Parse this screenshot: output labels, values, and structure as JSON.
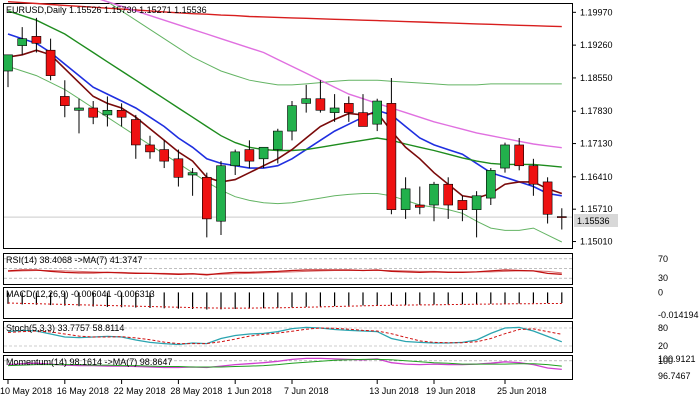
{
  "header": {
    "symbol_line": "EURUSD,Daily  1.15526 1.15730 1.15271 1.15536"
  },
  "colors": {
    "bull": "#22b14c",
    "bear": "#ee1111",
    "ma_blue": "#1f2fe0",
    "ma_green": "#1e8c1e",
    "ma_darkred": "#7a0a0a",
    "ma_red": "#d81e1e",
    "ma_magenta": "#e070e0",
    "env": "#64b464",
    "rsi": "#c01010",
    "macd_sig": "#d01010",
    "stoch_main": "#2aa4b0",
    "stoch_sig": "#d01010",
    "mom_main": "#d040d0",
    "mom_sig": "#20a020",
    "current_price_bg": "#d8d8d8"
  },
  "price_axis": {
    "labels": [
      "1.19970",
      "1.19260",
      "1.18550",
      "1.17830",
      "1.17130",
      "1.16410",
      "1.15710",
      "1.15010"
    ],
    "current_label": "1.15536"
  },
  "chart_data": [
    {
      "type": "candlestick",
      "title": "EURUSD,Daily",
      "ylim": [
        1.1487,
        1.2015
      ],
      "x_labels": [
        "10 May 2018",
        "16 May 2018",
        "22 May 2018",
        "28 May 2018",
        "1 Jun 2018",
        "7 Jun 2018",
        "13 Jun 2018",
        "19 Jun 2018",
        "25 Jun 2018"
      ],
      "ohlc": [
        [
          1.187,
          1.1905,
          1.1835,
          1.1905
        ],
        [
          1.1925,
          1.1965,
          1.1905,
          1.194
        ],
        [
          1.1945,
          1.1985,
          1.191,
          1.193
        ],
        [
          1.1915,
          1.194,
          1.185,
          1.186
        ],
        [
          1.1815,
          1.185,
          1.177,
          1.1795
        ],
        [
          1.1785,
          1.181,
          1.1735,
          1.179
        ],
        [
          1.179,
          1.1805,
          1.1755,
          1.177
        ],
        [
          1.1775,
          1.1815,
          1.175,
          1.1785
        ],
        [
          1.1785,
          1.18,
          1.175,
          1.177
        ],
        [
          1.1765,
          1.1775,
          1.168,
          1.171
        ],
        [
          1.171,
          1.173,
          1.168,
          1.1695
        ],
        [
          1.17,
          1.172,
          1.166,
          1.1675
        ],
        [
          1.168,
          1.17,
          1.162,
          1.164
        ],
        [
          1.1645,
          1.166,
          1.16,
          1.165
        ],
        [
          1.164,
          1.165,
          1.151,
          1.155
        ],
        [
          1.1545,
          1.1675,
          1.1515,
          1.1665
        ],
        [
          1.1665,
          1.17,
          1.1645,
          1.1695
        ],
        [
          1.17,
          1.172,
          1.166,
          1.1675
        ],
        [
          1.168,
          1.17,
          1.166,
          1.1705
        ],
        [
          1.17,
          1.1745,
          1.167,
          1.174
        ],
        [
          1.174,
          1.1805,
          1.172,
          1.1795
        ],
        [
          1.18,
          1.184,
          1.178,
          1.181
        ],
        [
          1.181,
          1.185,
          1.178,
          1.1785
        ],
        [
          1.178,
          1.182,
          1.176,
          1.179
        ],
        [
          1.18,
          1.1815,
          1.176,
          1.178
        ],
        [
          1.178,
          1.182,
          1.1755,
          1.175
        ],
        [
          1.1755,
          1.181,
          1.174,
          1.1805
        ],
        [
          1.18,
          1.1855,
          1.156,
          1.157
        ],
        [
          1.157,
          1.164,
          1.155,
          1.1615
        ],
        [
          1.158,
          1.162,
          1.156,
          1.1575
        ],
        [
          1.158,
          1.163,
          1.1545,
          1.1625
        ],
        [
          1.1625,
          1.164,
          1.155,
          1.158
        ],
        [
          1.159,
          1.16,
          1.1545,
          1.157
        ],
        [
          1.157,
          1.161,
          1.151,
          1.16
        ],
        [
          1.1595,
          1.166,
          1.158,
          1.1655
        ],
        [
          1.166,
          1.1715,
          1.165,
          1.171
        ],
        [
          1.171,
          1.1725,
          1.1655,
          1.1665
        ],
        [
          1.1665,
          1.168,
          1.16,
          1.1625
        ],
        [
          1.163,
          1.164,
          1.154,
          1.156
        ],
        [
          1.1555,
          1.1573,
          1.1527,
          1.1554
        ]
      ],
      "moving_averages": [
        {
          "color_key": "ma_blue",
          "values": [
            1.195,
            1.194,
            1.193,
            1.191,
            1.1885,
            1.186,
            1.1835,
            1.182,
            1.1805,
            1.179,
            1.177,
            1.175,
            1.1725,
            1.1705,
            1.168,
            1.167,
            1.1665,
            1.166,
            1.166,
            1.1665,
            1.168,
            1.17,
            1.172,
            1.174,
            1.1755,
            1.177,
            1.1785,
            1.1775,
            1.175,
            1.1725,
            1.171,
            1.17,
            1.169,
            1.167,
            1.165,
            1.164,
            1.163,
            1.162,
            1.1605,
            1.16
          ]
        },
        {
          "color_key": "ma_green",
          "values": [
            1.2,
            1.199,
            1.198,
            1.1965,
            1.195,
            1.193,
            1.191,
            1.189,
            1.187,
            1.185,
            1.183,
            1.181,
            1.179,
            1.177,
            1.175,
            1.173,
            1.1715,
            1.1705,
            1.17,
            1.1698,
            1.1698,
            1.17,
            1.1705,
            1.171,
            1.1715,
            1.172,
            1.1725,
            1.172,
            1.1712,
            1.1705,
            1.1698,
            1.169,
            1.1682,
            1.1675,
            1.167,
            1.1668,
            1.1668,
            1.1668,
            1.1665,
            1.1662
          ]
        },
        {
          "color_key": "ma_darkred",
          "values": [
            1.19,
            1.1905,
            1.1915,
            1.1905,
            1.1875,
            1.1845,
            1.1815,
            1.18,
            1.179,
            1.177,
            1.1745,
            1.172,
            1.1695,
            1.1675,
            1.164,
            1.163,
            1.1635,
            1.165,
            1.1665,
            1.168,
            1.17,
            1.1725,
            1.175,
            1.1765,
            1.1778,
            1.1775,
            1.178,
            1.174,
            1.1705,
            1.168,
            1.165,
            1.1625,
            1.16,
            1.1595,
            1.1605,
            1.1625,
            1.163,
            1.163,
            1.1615,
            1.1605
          ]
        },
        {
          "color_key": "ma_red",
          "values": [
            1.202,
            1.2018,
            1.2016,
            1.2014,
            1.2012,
            1.201,
            1.2008,
            1.2006,
            1.2004,
            1.2002,
            1.2,
            1.1998,
            1.1996,
            1.1994,
            1.1993,
            1.1991,
            1.199,
            1.1988,
            1.1987,
            1.1986,
            1.1985,
            1.1984,
            1.1983,
            1.1982,
            1.1981,
            1.198,
            1.1979,
            1.1978,
            1.1977,
            1.1976,
            1.1975,
            1.1974,
            1.1973,
            1.1972,
            1.1971,
            1.197,
            1.1969,
            1.1968,
            1.1967,
            1.1966
          ]
        },
        {
          "color_key": "ma_magenta",
          "values": [
            1.209,
            1.208,
            1.207,
            1.206,
            1.205,
            1.204,
            1.203,
            1.202,
            1.201,
            1.2,
            1.199,
            1.198,
            1.197,
            1.196,
            1.195,
            1.194,
            1.193,
            1.192,
            1.191,
            1.1895,
            1.188,
            1.1865,
            1.185,
            1.1835,
            1.182,
            1.181,
            1.18,
            1.179,
            1.178,
            1.177,
            1.176,
            1.1752,
            1.1744,
            1.1736,
            1.173,
            1.1724,
            1.1718,
            1.1712,
            1.1708,
            1.1704
          ]
        }
      ],
      "envelope_upper": [
        1.209,
        1.208,
        1.207,
        1.206,
        1.205,
        1.204,
        1.203,
        1.202,
        1.2,
        1.198,
        1.196,
        1.194,
        1.192,
        1.19,
        1.1885,
        1.187,
        1.186,
        1.185,
        1.1845,
        1.184,
        1.184,
        1.1842,
        1.1845,
        1.1848,
        1.185,
        1.185,
        1.185,
        1.1848,
        1.1846,
        1.1844,
        1.1842,
        1.184,
        1.184,
        1.184,
        1.1842,
        1.1842,
        1.1842,
        1.1842,
        1.1842,
        1.1842
      ],
      "envelope_lower": [
        1.188,
        1.187,
        1.186,
        1.1845,
        1.183,
        1.181,
        1.179,
        1.177,
        1.175,
        1.173,
        1.171,
        1.169,
        1.167,
        1.165,
        1.163,
        1.1612,
        1.1598,
        1.159,
        1.1585,
        1.1583,
        1.1585,
        1.159,
        1.1595,
        1.16,
        1.1603,
        1.1605,
        1.1605,
        1.16,
        1.159,
        1.158,
        1.1575,
        1.157,
        1.1562,
        1.1545,
        1.153,
        1.1525,
        1.1525,
        1.153,
        1.1515,
        1.15
      ]
    },
    {
      "type": "line",
      "title": "RSI(14) 38.4068  ->MA(7) 41.3747",
      "ylim": [
        18,
        80
      ],
      "y_labels": [
        "70",
        "30"
      ],
      "levels": [
        70,
        50,
        30
      ],
      "series": [
        {
          "color_key": "rsi",
          "values": [
            45,
            47,
            47,
            44,
            42,
            41,
            41,
            42,
            41,
            40,
            40,
            39,
            38,
            39,
            37,
            40,
            42,
            42,
            43,
            44,
            46,
            47,
            47,
            47,
            47,
            46,
            47,
            44,
            43,
            42,
            43,
            42,
            42,
            43,
            45,
            47,
            46,
            45,
            40,
            38
          ]
        },
        {
          "color_key": "rsi",
          "values": [
            44,
            45,
            46,
            46,
            45,
            44,
            43,
            42,
            42,
            41,
            40,
            40,
            39,
            39,
            38,
            38,
            39,
            40,
            41,
            42,
            43,
            44,
            45,
            46,
            46,
            46,
            46,
            46,
            45,
            44,
            44,
            43,
            43,
            43,
            43,
            44,
            45,
            45,
            44,
            41
          ]
        }
      ]
    },
    {
      "type": "bar",
      "title": "MACD(12,26,9) -0.006041 -0.006313",
      "ylim": [
        -0.0145,
        0.0025
      ],
      "y_labels": [
        "0",
        "-0.014194"
      ],
      "values": [
        -0.0065,
        -0.0068,
        -0.007,
        -0.0072,
        -0.0075,
        -0.0078,
        -0.008,
        -0.0082,
        -0.0084,
        -0.0086,
        -0.0088,
        -0.009,
        -0.0092,
        -0.0094,
        -0.0097,
        -0.0096,
        -0.0094,
        -0.0092,
        -0.009,
        -0.0088,
        -0.0085,
        -0.0082,
        -0.008,
        -0.0078,
        -0.0076,
        -0.0074,
        -0.0072,
        -0.0072,
        -0.0071,
        -0.007,
        -0.0069,
        -0.0068,
        -0.0067,
        -0.0066,
        -0.0065,
        -0.0064,
        -0.0063,
        -0.0062,
        -0.0061,
        -0.006
      ],
      "signal": [
        -0.006,
        -0.0062,
        -0.0064,
        -0.0066,
        -0.0068,
        -0.007,
        -0.0072,
        -0.0074,
        -0.0076,
        -0.0078,
        -0.008,
        -0.0082,
        -0.0084,
        -0.0086,
        -0.0088,
        -0.0089,
        -0.0089,
        -0.0089,
        -0.0088,
        -0.0087,
        -0.0086,
        -0.0084,
        -0.0082,
        -0.008,
        -0.0078,
        -0.0076,
        -0.0074,
        -0.0073,
        -0.0072,
        -0.0071,
        -0.007,
        -0.0069,
        -0.0068,
        -0.0067,
        -0.0066,
        -0.0065,
        -0.0064,
        -0.0064,
        -0.0063,
        -0.0063
      ]
    },
    {
      "type": "line",
      "title": "Stoch(5,3,3) 33.7757 58.8114",
      "ylim": [
        0,
        100
      ],
      "y_labels": [
        "80",
        "20"
      ],
      "levels": [
        80,
        20
      ],
      "series": [
        {
          "color_key": "stoch_main",
          "values": [
            68,
            72,
            70,
            60,
            50,
            48,
            50,
            52,
            50,
            40,
            32,
            28,
            25,
            30,
            28,
            45,
            55,
            60,
            62,
            68,
            78,
            82,
            80,
            75,
            72,
            70,
            68,
            45,
            35,
            32,
            30,
            30,
            32,
            40,
            62,
            80,
            82,
            70,
            52,
            34
          ]
        },
        {
          "color_key": "stoch_sig",
          "values": [
            65,
            68,
            70,
            67,
            60,
            53,
            50,
            50,
            51,
            47,
            41,
            33,
            28,
            28,
            28,
            34,
            43,
            53,
            59,
            63,
            69,
            76,
            80,
            79,
            76,
            72,
            70,
            61,
            49,
            37,
            32,
            31,
            31,
            34,
            45,
            61,
            75,
            77,
            68,
            59
          ]
        }
      ]
    },
    {
      "type": "line",
      "title": "Momentum(14) 98.1614  ->MA(7) 98.8647",
      "ylim": [
        96.2,
        101.0
      ],
      "y_labels": [
        "100.9121",
        "100",
        "96.7467"
      ],
      "levels": [
        100
      ],
      "series": [
        {
          "color_key": "mom_main",
          "values": [
            99.2,
            99.4,
            99.5,
            99.3,
            99.1,
            99.0,
            99.0,
            98.9,
            98.9,
            98.8,
            98.7,
            98.6,
            98.6,
            98.7,
            98.6,
            98.9,
            99.2,
            99.4,
            99.6,
            99.9,
            100.3,
            100.5,
            100.5,
            100.4,
            100.3,
            100.2,
            100.4,
            99.6,
            99.3,
            99.2,
            99.3,
            99.2,
            99.2,
            99.3,
            99.5,
            99.8,
            99.6,
            99.2,
            98.5,
            98.2
          ]
        },
        {
          "color_key": "mom_sig",
          "values": [
            99.0,
            99.1,
            99.2,
            99.2,
            99.2,
            99.2,
            99.1,
            99.1,
            99.0,
            99.0,
            98.9,
            98.8,
            98.8,
            98.7,
            98.7,
            98.7,
            98.8,
            98.9,
            99.0,
            99.2,
            99.5,
            99.7,
            99.9,
            100.1,
            100.2,
            100.3,
            100.3,
            100.2,
            100.0,
            99.8,
            99.6,
            99.5,
            99.3,
            99.3,
            99.3,
            99.3,
            99.4,
            99.4,
            99.2,
            98.9
          ]
        }
      ]
    }
  ]
}
